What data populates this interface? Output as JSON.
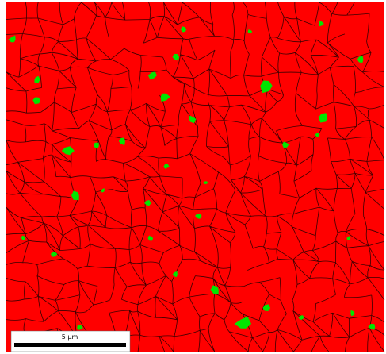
{
  "scale_bar": {
    "label": "5 µm"
  }
}
